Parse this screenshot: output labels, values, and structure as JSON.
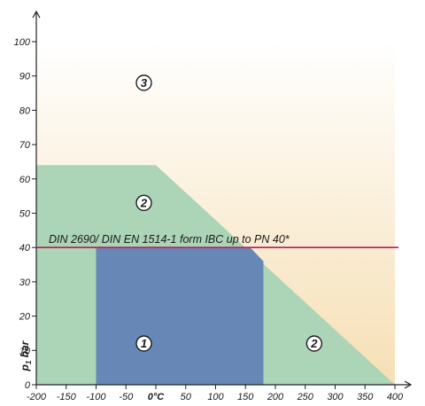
{
  "chart_data": {
    "type": "area",
    "title": "",
    "xlabel": "",
    "ylabel": "p, bar",
    "ylabel_subscript": "1",
    "xlim": [
      -200,
      400
    ],
    "ylim": [
      0,
      100
    ],
    "x_ticks": [
      -200,
      -150,
      -100,
      -50,
      0,
      50,
      100,
      150,
      200,
      250,
      300,
      350,
      400
    ],
    "x_tick_labels": [
      "-200",
      "-150",
      "-100",
      "-50",
      "0°C",
      "50",
      "100",
      "150",
      "200",
      "250",
      "300",
      "350",
      "400"
    ],
    "y_ticks": [
      0,
      10,
      20,
      30,
      40,
      50,
      60,
      70,
      80,
      90,
      100
    ],
    "y_tick_labels": [
      "0",
      "10",
      "20",
      "30",
      "40",
      "50",
      "60",
      "70",
      "80",
      "90",
      "100"
    ],
    "grid": false,
    "zones": [
      {
        "label": "3",
        "color_top": "#ffffff",
        "color_bottom": "#f6dfb4",
        "polygon": [
          [
            -200,
            0
          ],
          [
            400,
            0
          ],
          [
            400,
            100
          ],
          [
            -200,
            100
          ]
        ],
        "label_pos": [
          -20,
          88
        ]
      },
      {
        "label": "2",
        "color": "#acd4b6",
        "polygon": [
          [
            -200,
            0
          ],
          [
            400,
            0
          ],
          [
            0,
            64
          ],
          [
            -200,
            64
          ]
        ],
        "label_pos": [
          -20,
          53
        ],
        "second_label_pos": [
          265,
          12
        ]
      },
      {
        "label": "1",
        "color": "#6788b6",
        "polygon": [
          [
            -100,
            0
          ],
          [
            180,
            0
          ],
          [
            180,
            36
          ],
          [
            158,
            40
          ],
          [
            -100,
            40
          ]
        ],
        "label_pos": [
          -20,
          12
        ]
      }
    ],
    "reference_lines": [
      {
        "y": 40,
        "label": "DIN 2690/ DIN EN 1514-1 form IBC up to PN 40*",
        "color": "#c2185b"
      }
    ]
  }
}
